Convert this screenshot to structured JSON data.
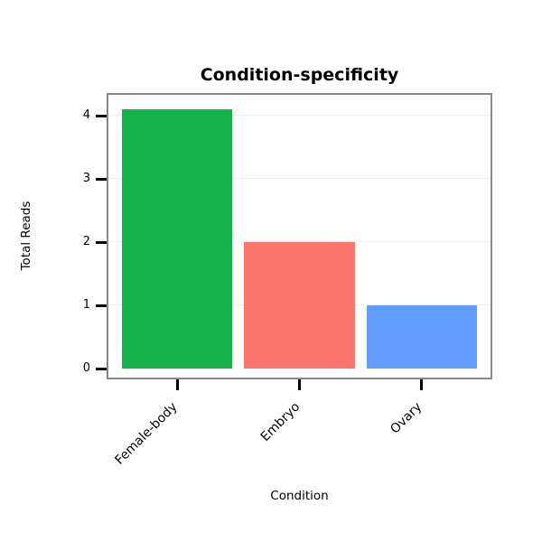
{
  "chart_data": {
    "type": "bar",
    "title": "Condition-specificity",
    "xlabel": "Condition",
    "ylabel": "Total Reads",
    "categories": [
      "Female-body",
      "Embryo",
      "Ovary"
    ],
    "values": [
      4.1,
      2,
      1
    ],
    "colors": [
      "#16b24c",
      "#f8766d",
      "#619cff"
    ],
    "yticks": [
      0,
      1,
      2,
      3,
      4
    ],
    "ylim": [
      0,
      4.4
    ],
    "grid": true,
    "legend": "none",
    "panel_border_color": "#888888",
    "gridline_color": "#efefef",
    "tick_color": "#000000"
  }
}
